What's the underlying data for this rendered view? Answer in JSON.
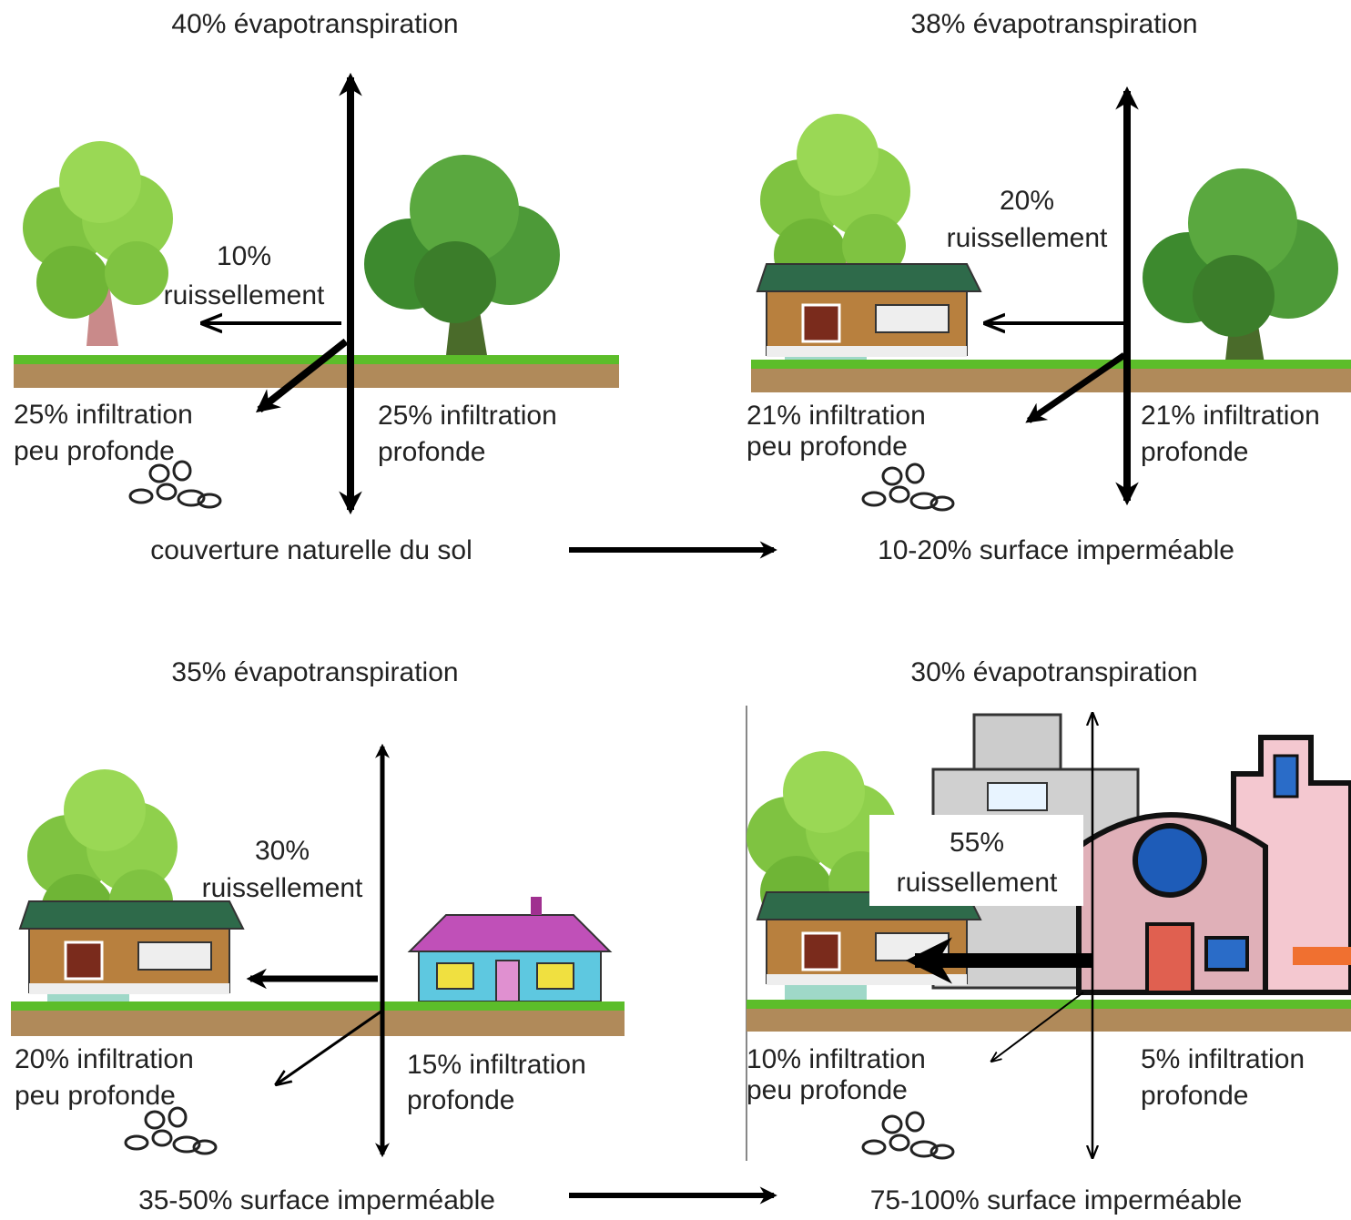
{
  "panels": [
    {
      "evapotranspiration": "40% évapotranspiration",
      "runoff": {
        "percent": "10%",
        "label": "ruissellement"
      },
      "shallow_infiltration": {
        "line1": "25% infiltration",
        "line2": "peu profonde"
      },
      "deep_infiltration": {
        "line1": "25% infiltration",
        "line2": "profonde"
      },
      "caption": "couverture naturelle du sol"
    },
    {
      "evapotranspiration": "38% évapotranspiration",
      "runoff": {
        "percent": "20%",
        "label": "ruissellement"
      },
      "shallow_infiltration": {
        "line1": "21% infiltration",
        "line2": "peu profonde"
      },
      "deep_infiltration": {
        "line1": "21% infiltration",
        "line2": "profonde"
      },
      "caption": "10-20% surface imperméable"
    },
    {
      "evapotranspiration": "35% évapotranspiration",
      "runoff": {
        "percent": "30%",
        "label": "ruissellement"
      },
      "shallow_infiltration": {
        "line1": "20% infiltration",
        "line2": "peu profonde"
      },
      "deep_infiltration": {
        "line1": "15% infiltration",
        "line2": "profonde"
      },
      "caption": "35-50% surface imperméable"
    },
    {
      "evapotranspiration": "30% évapotranspiration",
      "runoff": {
        "percent": "55%",
        "label": "ruissellement"
      },
      "shallow_infiltration": {
        "line1": "10% infiltration",
        "line2": "peu profonde"
      },
      "deep_infiltration": {
        "line1": "5% infiltration",
        "line2": "profonde"
      },
      "caption": "75-100% surface imperméable"
    }
  ]
}
